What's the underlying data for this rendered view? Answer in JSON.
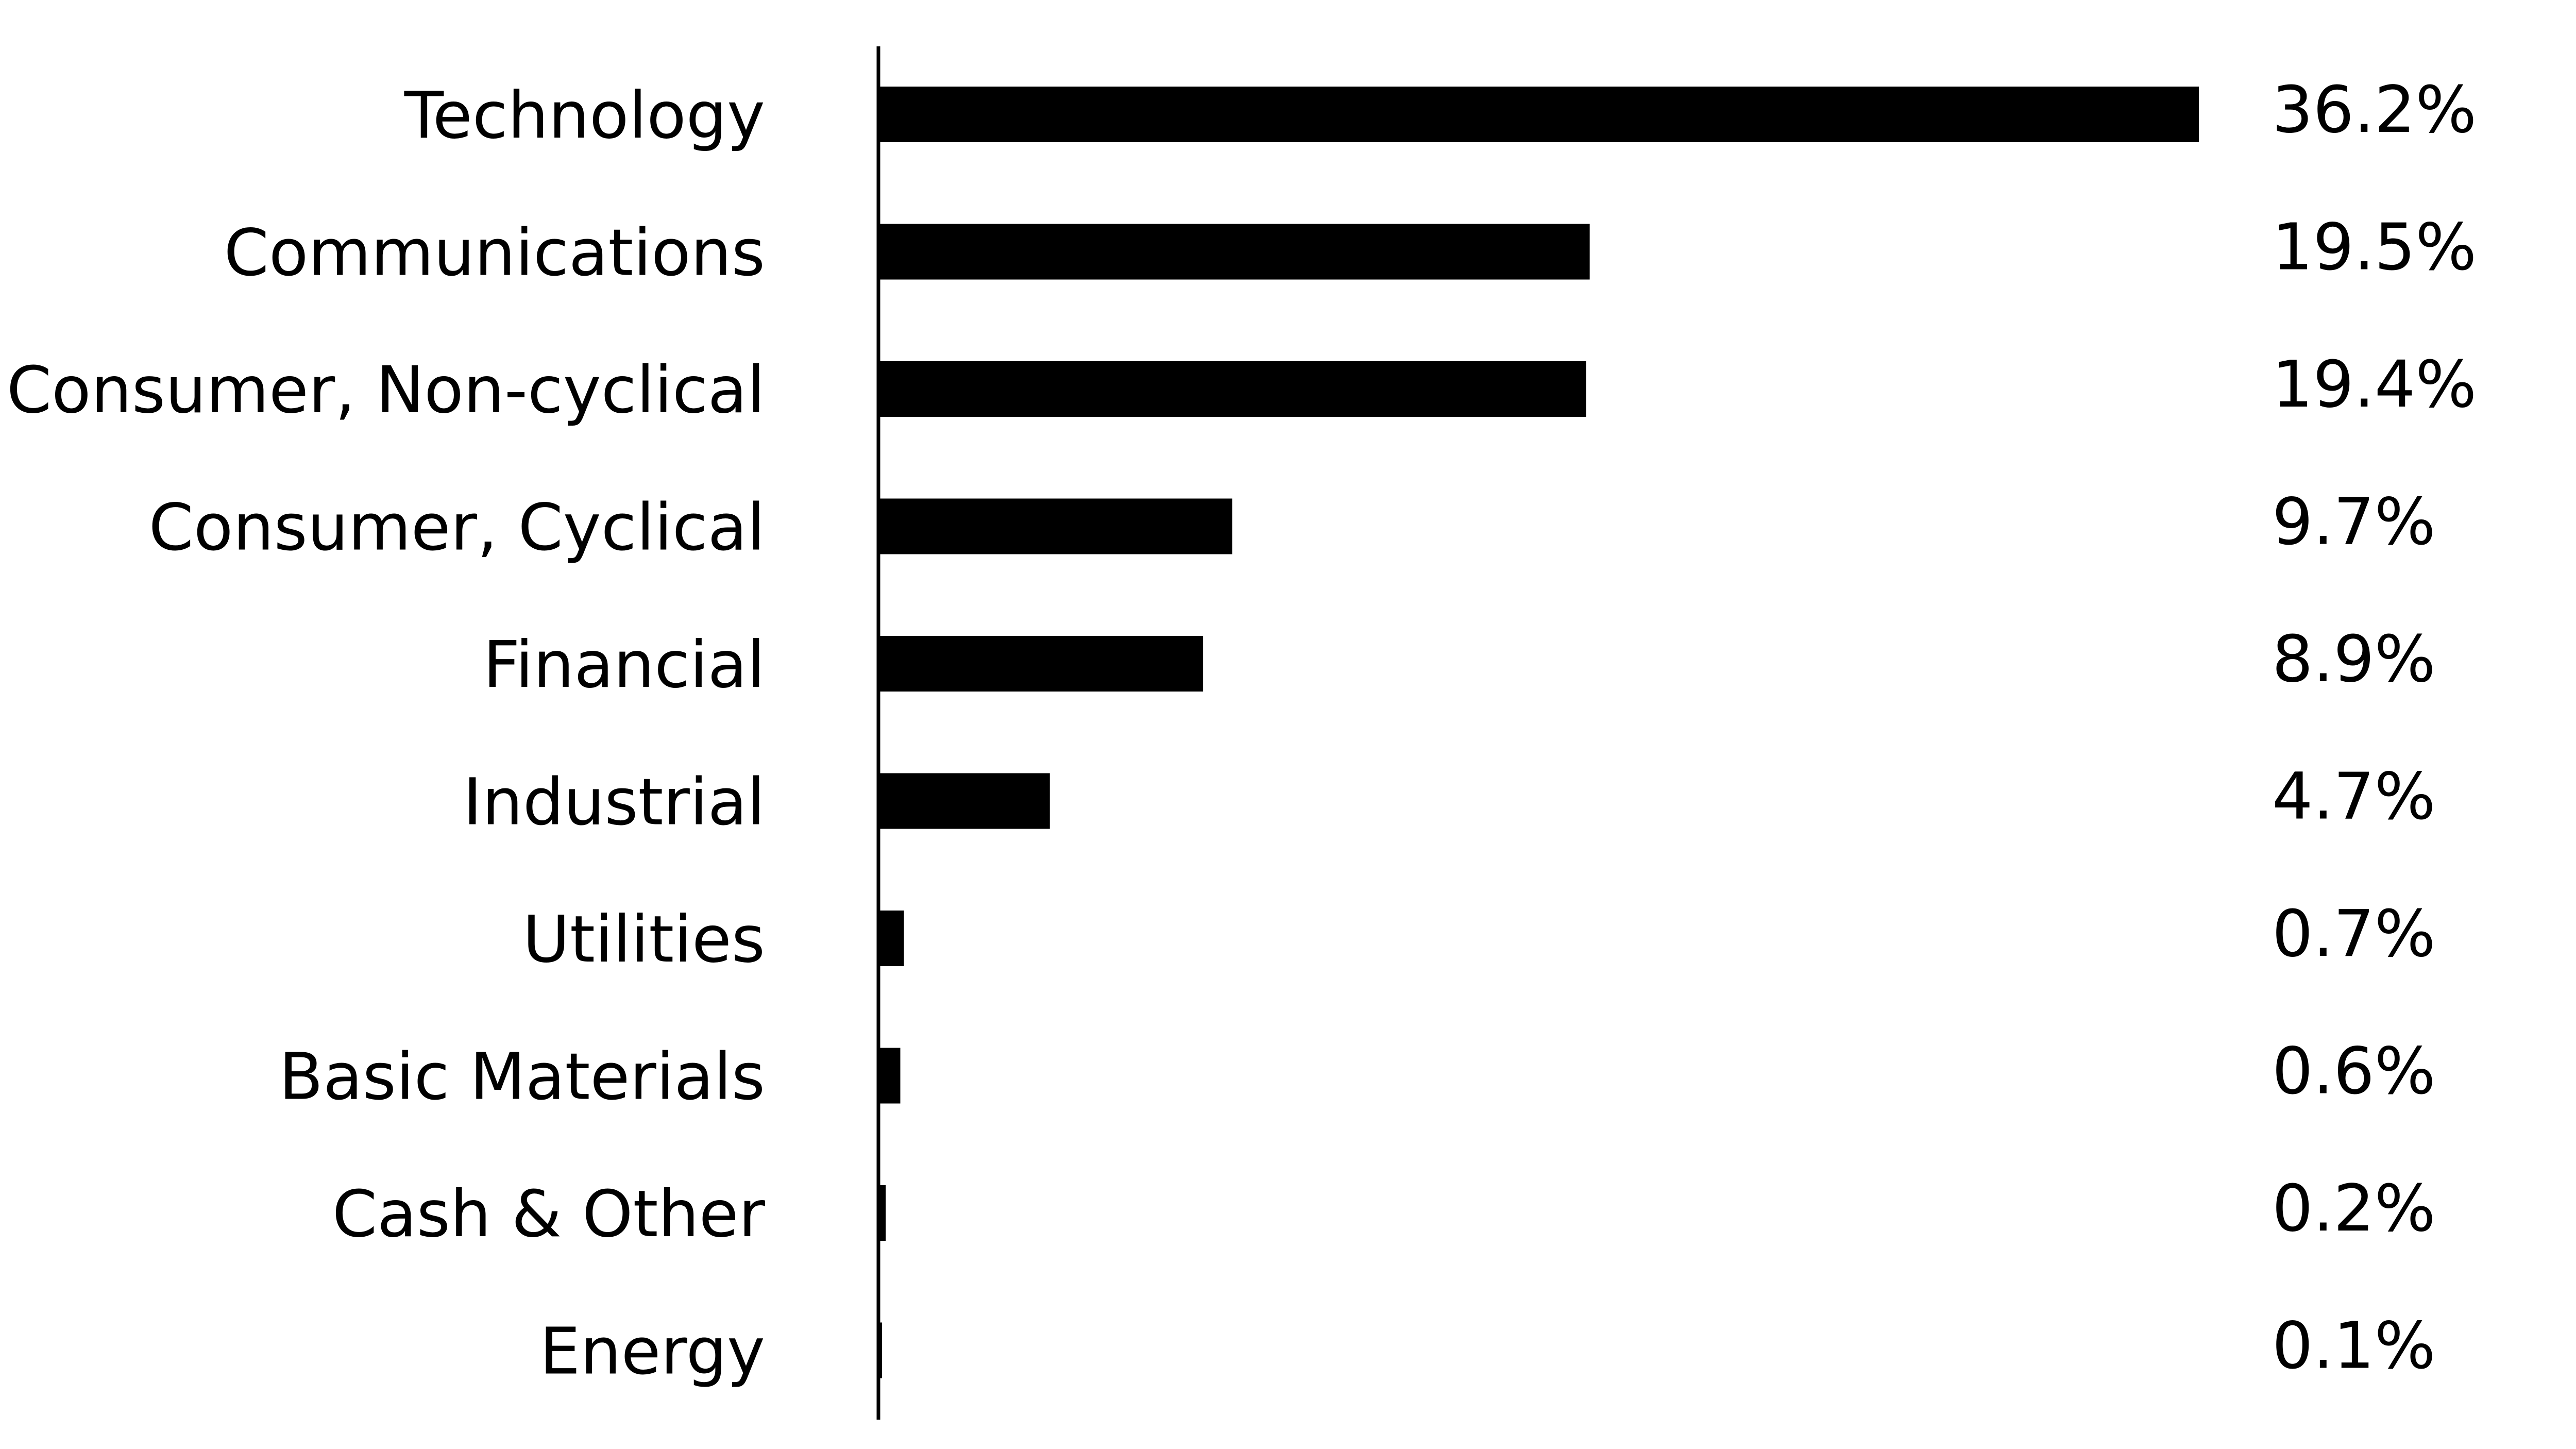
{
  "chart_data": {
    "type": "bar",
    "orientation": "horizontal",
    "title": "",
    "xlabel": "",
    "ylabel": "",
    "grid": false,
    "legend": "none",
    "xlim": [
      0,
      36.2
    ],
    "categories": [
      "Technology",
      "Communications",
      "Consumer, Non-cyclical",
      "Consumer, Cyclical",
      "Financial",
      "Industrial",
      "Utilities",
      "Basic Materials",
      "Cash & Other",
      "Energy"
    ],
    "values": [
      36.2,
      19.5,
      19.4,
      9.7,
      8.9,
      4.7,
      0.7,
      0.6,
      0.2,
      0.1
    ],
    "value_labels": [
      "36.2%",
      "19.5%",
      "19.4%",
      "9.7%",
      "8.9%",
      "4.7%",
      "0.7%",
      "0.6%",
      "0.2%",
      "0.1%"
    ],
    "colors": {
      "bar": "#000000",
      "axis": "#000000",
      "text": "#000000",
      "background": "#ffffff"
    }
  }
}
